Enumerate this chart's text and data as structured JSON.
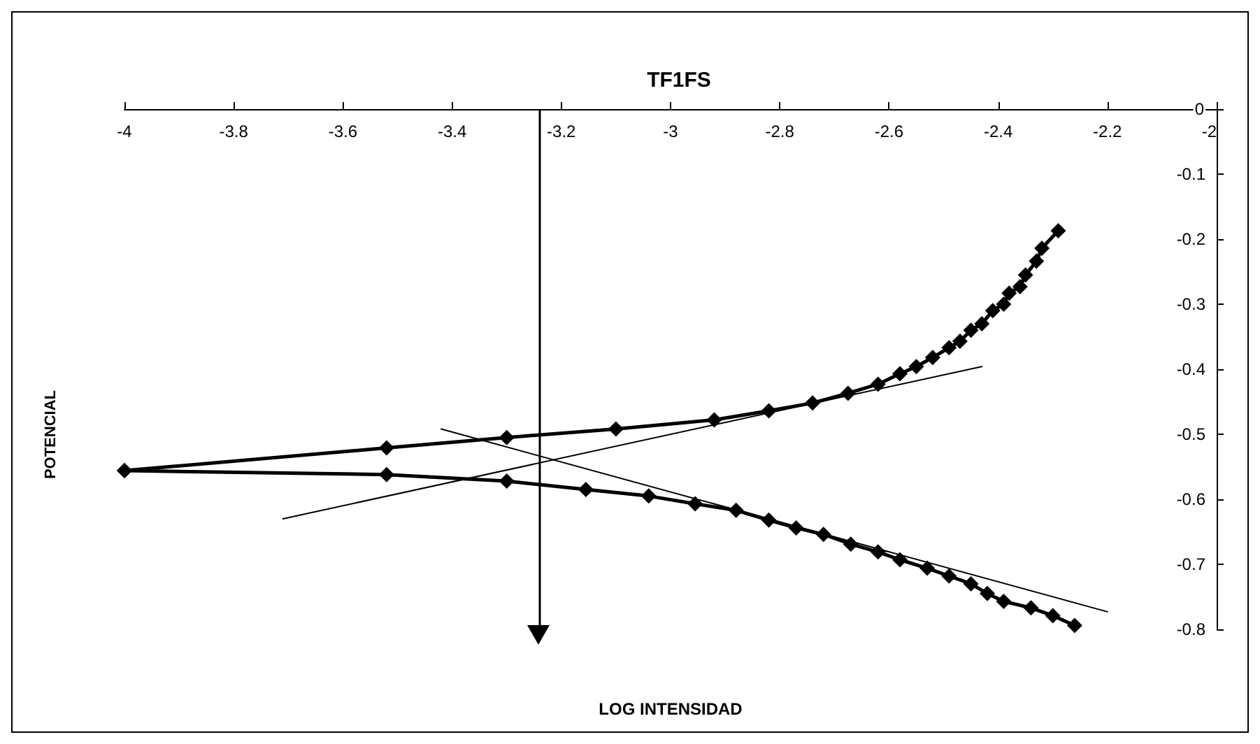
{
  "chart_data": {
    "type": "line",
    "title": "TF1FS",
    "xlabel": "LOG INTENSIDAD",
    "ylabel": "POTENCIAL",
    "xlim": [
      -4,
      -2
    ],
    "ylim": [
      -0.8,
      0
    ],
    "xticks": [
      -4,
      -3.8,
      -3.6,
      -3.4,
      -3.2,
      -3,
      -2.8,
      -2.6,
      -2.4,
      -2.2,
      -2
    ],
    "yticks": [
      0,
      -0.1,
      -0.2,
      -0.3,
      -0.4,
      -0.5,
      -0.6,
      -0.7,
      -0.8
    ],
    "marker": "diamond",
    "line_style": "solid",
    "series": [
      {
        "color": "#000000",
        "x": [
          -4,
          -3.52,
          -3.3,
          -3.1,
          -2.92,
          -2.82,
          -2.74,
          -2.675,
          -2.62,
          -2.58,
          -2.55,
          -2.52,
          -2.49,
          -2.47,
          -2.45,
          -2.43,
          -2.41,
          -2.39,
          -2.38,
          -2.36,
          -2.35,
          -2.33,
          -2.32,
          -2.29
        ],
        "values": [
          -0.556,
          -0.521,
          -0.505,
          -0.492,
          -0.478,
          -0.464,
          -0.452,
          -0.437,
          -0.423,
          -0.407,
          -0.396,
          -0.382,
          -0.367,
          -0.357,
          -0.34,
          -0.33,
          -0.31,
          -0.3,
          -0.283,
          -0.273,
          -0.255,
          -0.234,
          -0.214,
          -0.187
        ]
      },
      {
        "color": "#000000",
        "x": [
          -4,
          -3.52,
          -3.3,
          -3.155,
          -3.04,
          -2.955,
          -2.88,
          -2.82,
          -2.77,
          -2.72,
          -2.67,
          -2.62,
          -2.58,
          -2.53,
          -2.49,
          -2.45,
          -2.42,
          -2.39,
          -2.34,
          -2.3,
          -2.26
        ],
        "values": [
          -0.556,
          -0.562,
          -0.572,
          -0.585,
          -0.595,
          -0.607,
          -0.617,
          -0.632,
          -0.644,
          -0.654,
          -0.669,
          -0.681,
          -0.693,
          -0.706,
          -0.718,
          -0.73,
          -0.745,
          -0.757,
          -0.767,
          -0.779,
          -0.794
        ]
      },
      {
        "color": "#000000",
        "marker": "none",
        "x": [
          -3.71,
          -2.43
        ],
        "values": [
          -0.63,
          -0.396
        ]
      },
      {
        "color": "#000000",
        "marker": "none",
        "x": [
          -3.42,
          -2.2
        ],
        "values": [
          -0.492,
          -0.773
        ]
      }
    ],
    "ref_lines": [
      {
        "axis": "x",
        "value": -3.24,
        "color": "#000000",
        "line_style": "solid"
      }
    ]
  }
}
